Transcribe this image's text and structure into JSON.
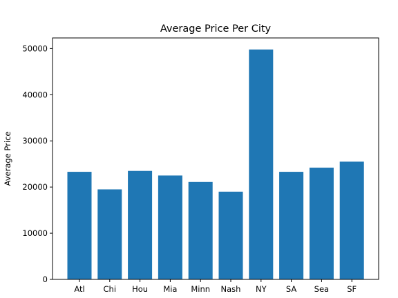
{
  "chart_data": {
    "type": "bar",
    "title": "Average Price Per City",
    "xlabel": "",
    "ylabel": "Average Price",
    "categories": [
      "Atl",
      "Chi",
      "Hou",
      "Mia",
      "Minn",
      "Nash",
      "NY",
      "SA",
      "Sea",
      "SF"
    ],
    "values": [
      23300,
      19500,
      23500,
      22500,
      21100,
      19000,
      49800,
      23300,
      24200,
      25500
    ],
    "ylim": [
      0,
      52300
    ],
    "yticks": [
      "0",
      "10000",
      "20000",
      "30000",
      "40000",
      "50000"
    ],
    "ytick_values": [
      0,
      10000,
      20000,
      30000,
      40000,
      50000
    ],
    "bar_color": "#1f77b4",
    "grid": false,
    "legend": "none"
  }
}
